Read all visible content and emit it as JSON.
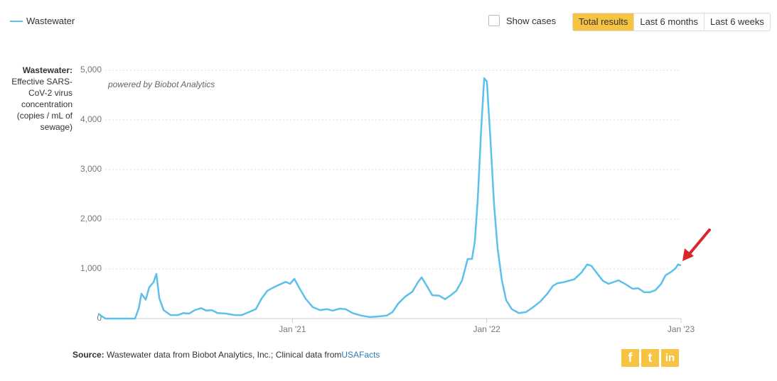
{
  "chart_data": {
    "type": "line",
    "annotation": "powered by Biobot Analytics",
    "y_label": {
      "title": "Wastewater:",
      "text": "Effective SARS-CoV-2 virus concentration (copies / mL of sewage)"
    },
    "xlim": [
      2020,
      2023
    ],
    "xticks": [
      {
        "value": 2021,
        "label": "Jan '21"
      },
      {
        "value": 2022,
        "label": "Jan '22"
      },
      {
        "value": 2023,
        "label": "Jan '23"
      }
    ],
    "ylim": [
      0,
      5000
    ],
    "yticks": [
      0,
      {
        "value": 1000,
        "label": "1,000"
      },
      {
        "value": 2000,
        "label": "2,000"
      },
      {
        "value": 3000,
        "label": "3,000"
      },
      {
        "value": 4000,
        "label": "4,000"
      },
      {
        "value": 5000,
        "label": "5,000"
      }
    ],
    "grid": true,
    "x": [
      2020.0,
      2020.037,
      2020.19,
      2020.209,
      2020.223,
      2020.245,
      2020.263,
      2020.285,
      2020.3,
      2020.315,
      2020.337,
      2020.373,
      2020.41,
      2020.439,
      2020.468,
      2020.498,
      2020.53,
      2020.556,
      2020.585,
      2020.615,
      2020.659,
      2020.702,
      2020.739,
      2020.776,
      2020.812,
      2020.841,
      2020.871,
      2020.904,
      2020.937,
      2020.966,
      2020.988,
      2021.01,
      2021.032,
      2021.068,
      2021.105,
      2021.141,
      2021.178,
      2021.207,
      2021.244,
      2021.273,
      2021.31,
      2021.354,
      2021.398,
      2021.434,
      2021.485,
      2021.515,
      2021.544,
      2021.58,
      2021.617,
      2021.646,
      2021.665,
      2021.69,
      2021.72,
      2021.756,
      2021.785,
      2021.815,
      2021.844,
      2021.873,
      2021.902,
      2021.924,
      2021.939,
      2021.954,
      2021.972,
      2021.987,
      2022.001,
      2022.02,
      2022.038,
      2022.056,
      2022.078,
      2022.1,
      2022.129,
      2022.166,
      2022.202,
      2022.239,
      2022.275,
      2022.312,
      2022.341,
      2022.363,
      2022.393,
      2022.422,
      2022.451,
      2022.488,
      2022.517,
      2022.539,
      2022.568,
      2022.598,
      2022.627,
      2022.649,
      2022.678,
      2022.715,
      2022.751,
      2022.78,
      2022.81,
      2022.839,
      2022.868,
      2022.898,
      2022.92,
      2022.949,
      2022.971,
      2022.985,
      2023.0
    ],
    "series": [
      {
        "name": "Wastewater",
        "color": "#5bc0eb",
        "values": [
          100,
          0,
          0,
          200,
          500,
          380,
          630,
          730,
          900,
          410,
          170,
          70,
          70,
          110,
          100,
          170,
          210,
          160,
          170,
          110,
          100,
          70,
          70,
          130,
          190,
          400,
          560,
          630,
          690,
          740,
          700,
          800,
          640,
          400,
          230,
          170,
          190,
          160,
          200,
          190,
          110,
          60,
          30,
          40,
          60,
          130,
          300,
          440,
          540,
          730,
          830,
          670,
          470,
          460,
          390,
          470,
          560,
          770,
          1200,
          1200,
          1560,
          2410,
          3840,
          4840,
          4770,
          3560,
          2270,
          1410,
          770,
          370,
          190,
          110,
          130,
          230,
          340,
          500,
          660,
          710,
          730,
          760,
          790,
          930,
          1090,
          1060,
          910,
          760,
          700,
          730,
          770,
          690,
          600,
          610,
          530,
          530,
          570,
          700,
          870,
          940,
          1010,
          1090,
          1070
        ]
      }
    ]
  },
  "ui": {
    "toggle": "Show cases",
    "ranges": [
      "Total results",
      "Last 6 months",
      "Last 6 weeks"
    ],
    "source": {
      "title": "Source:",
      "text": "Wastewater data from Biobot Analytics, Inc.; Clinical data from",
      "link": "USAFacts"
    }
  }
}
